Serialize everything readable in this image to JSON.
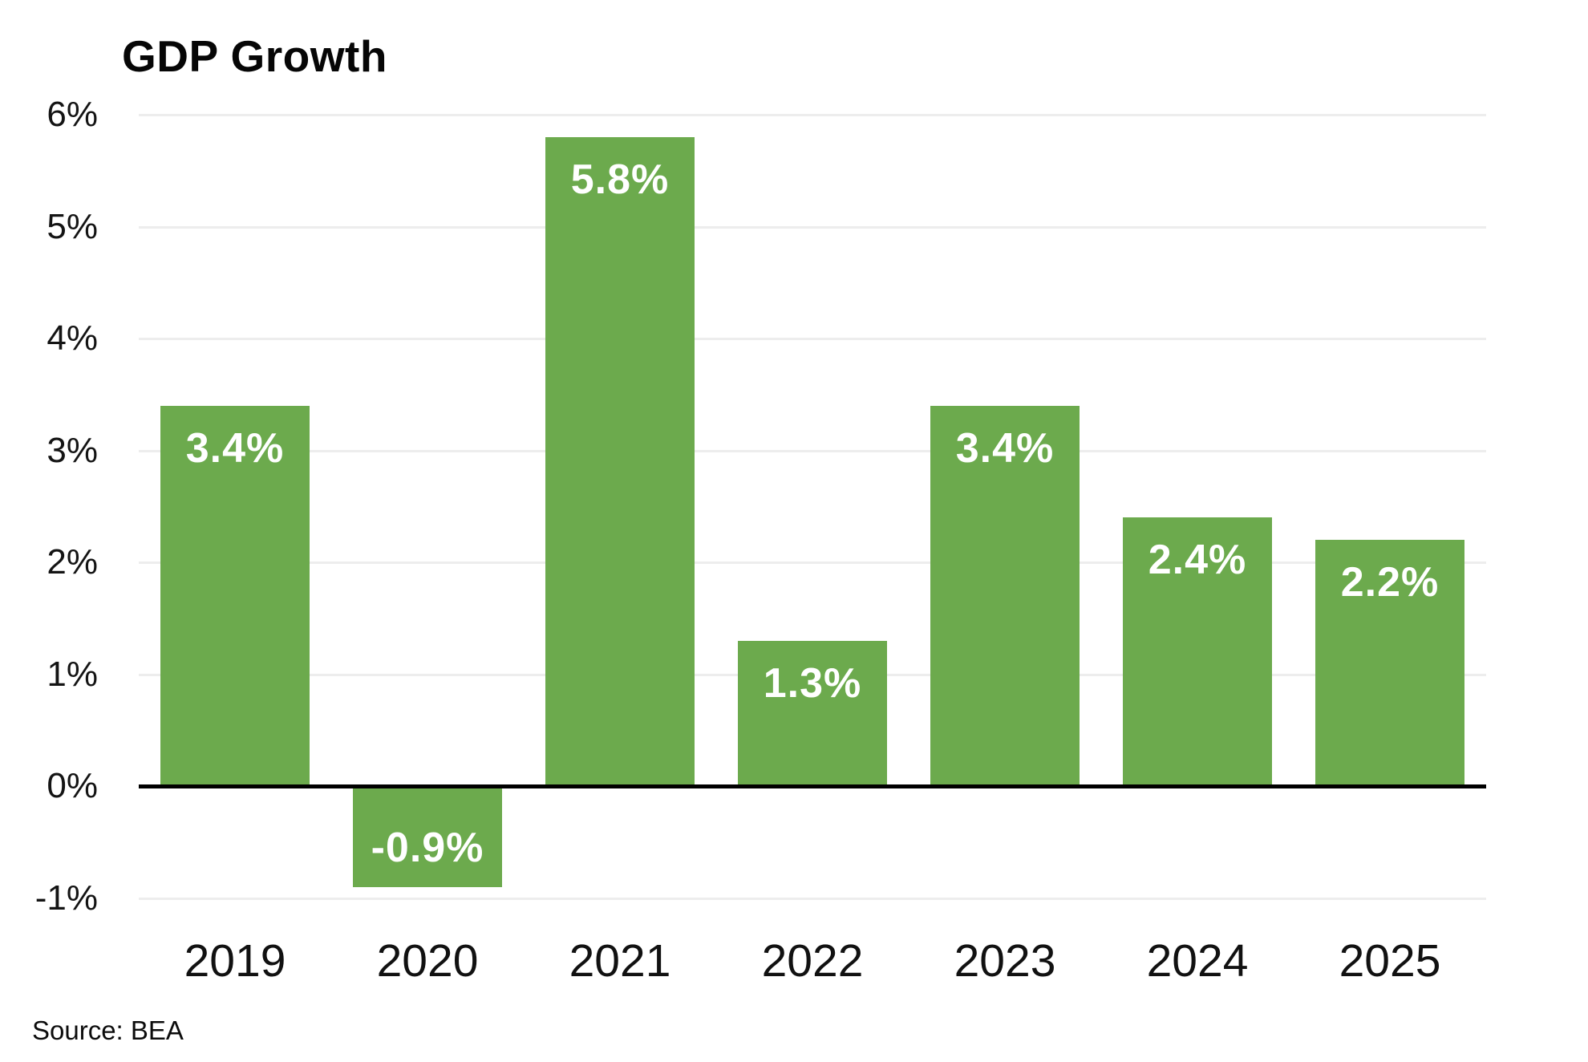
{
  "chart_data": {
    "type": "bar",
    "title": "GDP Growth",
    "source": "Source: BEA",
    "categories": [
      "2019",
      "2020",
      "2021",
      "2022",
      "2023",
      "2024",
      "2025"
    ],
    "values": [
      3.4,
      -0.9,
      5.8,
      1.3,
      3.4,
      2.4,
      2.2
    ],
    "bar_labels": [
      "3.4%",
      "-0.9%",
      "5.8%",
      "1.3%",
      "3.4%",
      "2.4%",
      "2.2%"
    ],
    "xlabel": "",
    "ylabel": "",
    "ylim": [
      -1,
      6
    ],
    "ytick_values": [
      6,
      5,
      4,
      3,
      2,
      1,
      0,
      -1
    ],
    "ytick_labels": [
      "6%",
      "5%",
      "4%",
      "3%",
      "2%",
      "1%",
      "0%",
      "-1%"
    ],
    "grid": true,
    "legend": "none",
    "value_label_position": "inside-end",
    "colors": {
      "bar": "#6CAA4D",
      "bar_label": "#ffffff",
      "gridline": "#ededed",
      "zero_line": "#000000",
      "text": "#111111",
      "background": "#ffffff"
    }
  }
}
